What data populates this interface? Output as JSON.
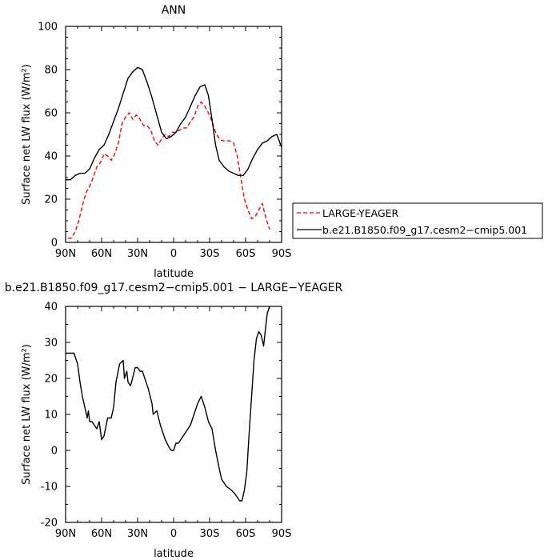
{
  "chart_data": [
    {
      "type": "line",
      "title": "ANN",
      "xlabel": "latitude",
      "ylabel": "Surface net LW flux (W/m²)",
      "xlim": [
        90,
        -90
      ],
      "ylim": [
        0,
        100
      ],
      "x_ticks": [
        90,
        60,
        30,
        0,
        -30,
        -60,
        -90
      ],
      "x_tick_labels": [
        "90N",
        "60N",
        "30N",
        "0",
        "30S",
        "60S",
        "90S"
      ],
      "y_ticks": [
        0,
        20,
        40,
        60,
        80,
        100
      ],
      "legend": "right",
      "series": [
        {
          "name": "LARGE-YEAGER",
          "color": "#ff0000",
          "style": "dashed",
          "x": [
            88,
            85,
            82,
            79,
            76,
            73,
            70,
            67,
            64,
            61,
            58,
            55,
            52,
            49,
            46,
            43,
            40,
            37,
            34,
            31,
            28,
            25,
            22,
            19,
            16,
            13,
            10,
            7,
            4,
            1,
            -2,
            -5,
            -8,
            -11,
            -14,
            -17,
            -20,
            -23,
            -26,
            -29,
            -32,
            -35,
            -38,
            -41,
            -44,
            -47,
            -50,
            -53,
            -56,
            -59,
            -62,
            -65,
            -68,
            -71,
            -74,
            -77,
            -80
          ],
          "y": [
            2,
            2,
            5,
            10,
            17,
            23,
            26,
            30,
            35,
            37,
            41,
            40,
            38,
            41,
            46,
            55,
            58,
            60,
            57,
            59,
            57,
            54,
            54,
            52,
            47,
            45,
            48,
            50,
            49,
            51,
            51,
            52,
            53,
            53,
            56,
            58,
            63,
            65,
            63,
            60,
            56,
            51,
            48,
            47,
            47,
            47,
            46,
            40,
            30,
            20,
            15,
            11,
            12,
            15,
            18,
            11,
            6
          ]
        },
        {
          "name": "b.e21.B1850.f09_g17.cesm2−cmip5.001",
          "color": "#000000",
          "style": "solid",
          "x": [
            90,
            86,
            82,
            78,
            74,
            70,
            66,
            62,
            58,
            54,
            50,
            46,
            42,
            38,
            34,
            30,
            26,
            22,
            18,
            14,
            10,
            6,
            2,
            -2,
            -6,
            -10,
            -14,
            -18,
            -22,
            -26,
            -29,
            -32,
            -35,
            -38,
            -42,
            -46,
            -50,
            -54,
            -58,
            -62,
            -66,
            -70,
            -74,
            -78,
            -82,
            -86,
            -90
          ],
          "y": [
            29,
            29,
            31,
            32,
            32,
            34,
            39,
            43,
            45,
            50,
            56,
            62,
            69,
            76,
            79,
            81,
            80,
            74,
            67,
            59,
            51,
            48,
            49,
            51,
            55,
            58,
            63,
            68,
            72,
            73,
            68,
            57,
            45,
            38,
            35,
            33,
            32,
            31,
            31,
            34,
            39,
            43,
            46,
            47,
            49,
            50,
            44
          ]
        }
      ]
    },
    {
      "type": "line",
      "title": "b.e21.B1850.f09_g17.cesm2−cmip5.001 − LARGE−YEAGER",
      "xlabel": "latitude",
      "ylabel": "Surface net LW flux (W/m²)",
      "xlim": [
        90,
        -90
      ],
      "ylim": [
        -20,
        40
      ],
      "x_ticks": [
        90,
        60,
        30,
        0,
        -30,
        -60,
        -90
      ],
      "x_tick_labels": [
        "90N",
        "60N",
        "30N",
        "0",
        "30S",
        "60S",
        "90S"
      ],
      "y_ticks": [
        -20,
        -10,
        0,
        10,
        20,
        30,
        40
      ],
      "series": [
        {
          "color": "#000000",
          "style": "solid",
          "x": [
            90,
            86,
            83,
            80,
            78,
            76,
            74,
            72,
            71,
            70,
            68,
            66,
            64,
            62,
            60,
            58,
            55,
            52,
            50,
            48,
            45,
            42,
            41,
            39,
            38,
            36,
            35,
            32,
            30,
            28,
            26,
            24,
            21,
            18,
            17,
            14,
            11,
            9,
            7,
            4,
            2,
            0,
            -2,
            -4,
            -6,
            -8,
            -10,
            -12,
            -14,
            -16,
            -18,
            -20,
            -23,
            -26,
            -29,
            -32,
            -35,
            -38,
            -40,
            -44,
            -48,
            -51,
            -53,
            -55,
            -57,
            -59,
            -61,
            -63,
            -65,
            -67,
            -69,
            -71,
            -73,
            -75,
            -78,
            -80
          ],
          "y": [
            27,
            27,
            27,
            24,
            19,
            15,
            12,
            9,
            11,
            8,
            8,
            7,
            6,
            8,
            3,
            4,
            9,
            9,
            12,
            19,
            24,
            25,
            20,
            22,
            19,
            18,
            19,
            23,
            23,
            22,
            22,
            20,
            17,
            13,
            10,
            11,
            7,
            5,
            3,
            1,
            0,
            0,
            2,
            2,
            3,
            4,
            5,
            6,
            7,
            9,
            11,
            13,
            15,
            12,
            8,
            6,
            0,
            -5,
            -8,
            -10,
            -11,
            -12,
            -13,
            -14,
            -14,
            -11,
            -6,
            5,
            15,
            25,
            31,
            33,
            32,
            29,
            38,
            40
          ]
        }
      ]
    }
  ]
}
